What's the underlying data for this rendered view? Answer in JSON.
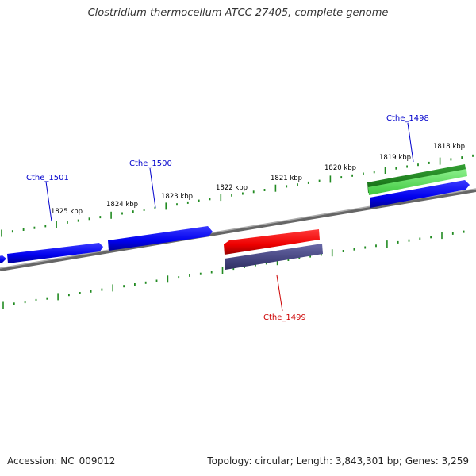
{
  "title": "Clostridium thermocellum ATCC 27405, complete genome",
  "footer": {
    "accession": "Accession: NC_009012",
    "summary": "Topology: circular; Length: 3,843,301 bp; Genes: 3,259"
  },
  "ticks": {
    "major_labels": [
      "1825 kbp",
      "1824 kbp",
      "1823 kbp",
      "1822 kbp",
      "1821 kbp",
      "1820 kbp",
      "1819 kbp",
      "1818 kbp"
    ]
  },
  "genes": [
    {
      "label": "Cthe_1501",
      "label_color": "#0000cc"
    },
    {
      "label": "Cthe_1500",
      "label_color": "#0000cc"
    },
    {
      "label": "Cthe_1499",
      "label_color": "#cc0000"
    },
    {
      "label": "Cthe_1498",
      "label_color": "#0000cc"
    }
  ],
  "colors": {
    "backbone": "#777777",
    "tick": "#228b22",
    "forward_cds": "#0000ee",
    "reverse_cds": "#ee0000",
    "reverse_gene": "#4a4a8a",
    "forward_gene": "#2aa02a"
  }
}
